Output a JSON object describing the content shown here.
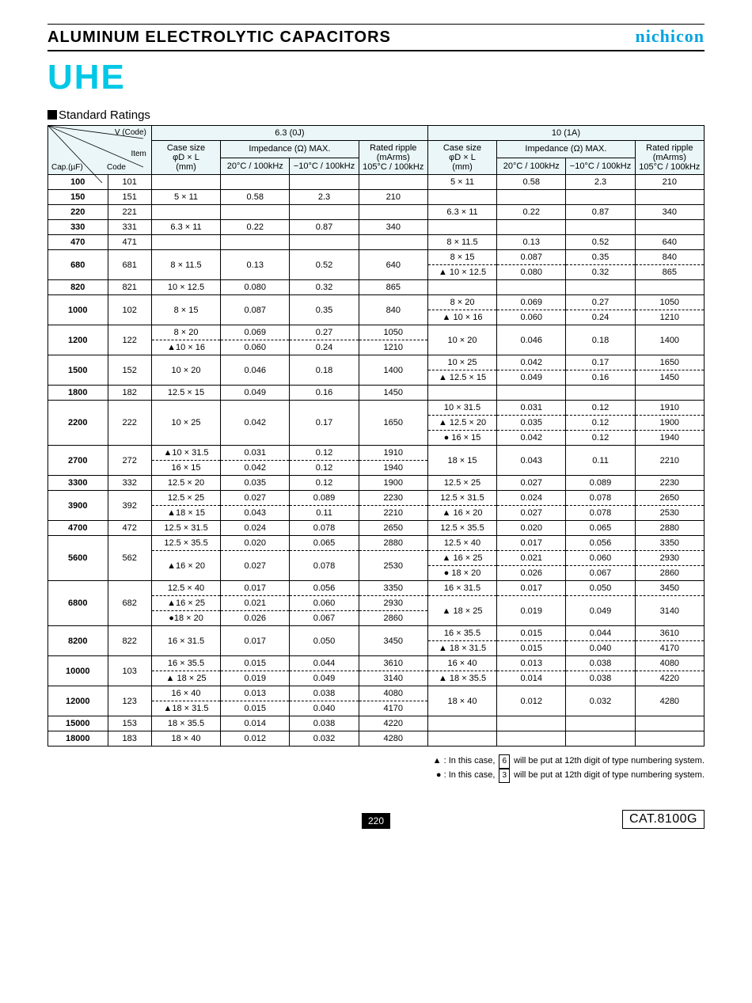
{
  "header": {
    "title": "ALUMINUM  ELECTROLYTIC  CAPACITORS",
    "brand": "nichicon",
    "series": "UHE"
  },
  "section": {
    "title": "Standard Ratings"
  },
  "corner": {
    "vcode": "V (Code)",
    "item": "Item",
    "cap": "Cap.(µF)",
    "code": "Code"
  },
  "volt_headers": [
    "6.3 (0J)",
    "10 (1A)"
  ],
  "sub_headers": {
    "case": "Case size\nφD × L\n(mm)",
    "imp": "Impedance (Ω) MAX.",
    "imp20": "20°C / 100kHz",
    "impm10": "−10°C / 100kHz",
    "ripple": "Rated ripple\n(mArms)\n105°C / 100kHz"
  },
  "rows": [
    {
      "cap": "100",
      "code": "101",
      "a": [
        {
          "case": "",
          "i20": "",
          "im": "",
          "r": ""
        }
      ],
      "b": [
        {
          "case": "5 × 11",
          "i20": "0.58",
          "im": "2.3",
          "r": "210"
        }
      ]
    },
    {
      "cap": "150",
      "code": "151",
      "a": [
        {
          "case": "5 × 11",
          "i20": "0.58",
          "im": "2.3",
          "r": "210"
        }
      ],
      "b": [
        {
          "case": "",
          "i20": "",
          "im": "",
          "r": ""
        }
      ]
    },
    {
      "cap": "220",
      "code": "221",
      "a": [
        {
          "case": "",
          "i20": "",
          "im": "",
          "r": ""
        }
      ],
      "b": [
        {
          "case": "6.3 × 11",
          "i20": "0.22",
          "im": "0.87",
          "r": "340"
        }
      ]
    },
    {
      "cap": "330",
      "code": "331",
      "a": [
        {
          "case": "6.3 × 11",
          "i20": "0.22",
          "im": "0.87",
          "r": "340"
        }
      ],
      "b": [
        {
          "case": "",
          "i20": "",
          "im": "",
          "r": ""
        }
      ]
    },
    {
      "cap": "470",
      "code": "471",
      "a": [
        {
          "case": "",
          "i20": "",
          "im": "",
          "r": ""
        }
      ],
      "b": [
        {
          "case": "8 × 11.5",
          "i20": "0.13",
          "im": "0.52",
          "r": "640"
        }
      ]
    },
    {
      "cap": "680",
      "code": "681",
      "a": [
        {
          "case": "8 × 11.5",
          "i20": "0.13",
          "im": "0.52",
          "r": "640"
        }
      ],
      "b": [
        {
          "case": "8 × 15",
          "i20": "0.087",
          "im": "0.35",
          "r": "840"
        },
        {
          "case": "▲ 10 × 12.5",
          "i20": "0.080",
          "im": "0.32",
          "r": "865"
        }
      ]
    },
    {
      "cap": "820",
      "code": "821",
      "a": [
        {
          "case": "10 × 12.5",
          "i20": "0.080",
          "im": "0.32",
          "r": "865"
        }
      ],
      "b": [
        {
          "case": "",
          "i20": "",
          "im": "",
          "r": ""
        }
      ]
    },
    {
      "cap": "1000",
      "code": "102",
      "a": [
        {
          "case": "8 × 15",
          "i20": "0.087",
          "im": "0.35",
          "r": "840"
        }
      ],
      "b": [
        {
          "case": "8 × 20",
          "i20": "0.069",
          "im": "0.27",
          "r": "1050"
        },
        {
          "case": "▲  10 × 16",
          "i20": "0.060",
          "im": "0.24",
          "r": "1210"
        }
      ]
    },
    {
      "cap": "1200",
      "code": "122",
      "a": [
        {
          "case": "8 × 20",
          "i20": "0.069",
          "im": "0.27",
          "r": "1050"
        },
        {
          "case": "▲10 × 16",
          "i20": "0.060",
          "im": "0.24",
          "r": "1210"
        }
      ],
      "b": [
        {
          "case": "10 × 20",
          "i20": "0.046",
          "im": "0.18",
          "r": "1400"
        }
      ]
    },
    {
      "cap": "1500",
      "code": "152",
      "a": [
        {
          "case": "10 × 20",
          "i20": "0.046",
          "im": "0.18",
          "r": "1400"
        }
      ],
      "b": [
        {
          "case": "10 × 25",
          "i20": "0.042",
          "im": "0.17",
          "r": "1650"
        },
        {
          "case": "▲ 12.5 × 15",
          "i20": "0.049",
          "im": "0.16",
          "r": "1450"
        }
      ]
    },
    {
      "cap": "1800",
      "code": "182",
      "a": [
        {
          "case": "12.5 × 15",
          "i20": "0.049",
          "im": "0.16",
          "r": "1450"
        }
      ],
      "b": [
        {
          "case": "",
          "i20": "",
          "im": "",
          "r": ""
        }
      ]
    },
    {
      "cap": "2200",
      "code": "222",
      "a": [
        {
          "case": "10 × 25",
          "i20": "0.042",
          "im": "0.17",
          "r": "1650"
        }
      ],
      "b": [
        {
          "case": "10 × 31.5",
          "i20": "0.031",
          "im": "0.12",
          "r": "1910"
        },
        {
          "case": "▲ 12.5 × 20",
          "i20": "0.035",
          "im": "0.12",
          "r": "1900"
        },
        {
          "case": "●  16 ×  15",
          "i20": "0.042",
          "im": "0.12",
          "r": "1940"
        }
      ]
    },
    {
      "cap": "2700",
      "code": "272",
      "a": [
        {
          "case": "▲10 × 31.5",
          "i20": "0.031",
          "im": "0.12",
          "r": "1910"
        },
        {
          "case": "16 × 15",
          "i20": "0.042",
          "im": "0.12",
          "r": "1940"
        }
      ],
      "b": [
        {
          "case": "18 ×  15",
          "i20": "0.043",
          "im": "0.11",
          "r": "2210"
        }
      ]
    },
    {
      "cap": "3300",
      "code": "332",
      "a": [
        {
          "case": "12.5 × 20",
          "i20": "0.035",
          "im": "0.12",
          "r": "1900"
        }
      ],
      "b": [
        {
          "case": "12.5 × 25",
          "i20": "0.027",
          "im": "0.089",
          "r": "2230"
        }
      ]
    },
    {
      "cap": "3900",
      "code": "392",
      "a": [
        {
          "case": "12.5 × 25",
          "i20": "0.027",
          "im": "0.089",
          "r": "2230"
        },
        {
          "case": "▲18 × 15",
          "i20": "0.043",
          "im": "0.11",
          "r": "2210"
        }
      ],
      "b": [
        {
          "case": "12.5 × 31.5",
          "i20": "0.024",
          "im": "0.078",
          "r": "2650"
        },
        {
          "case": "▲ 16 × 20",
          "i20": "0.027",
          "im": "0.078",
          "r": "2530"
        }
      ]
    },
    {
      "cap": "4700",
      "code": "472",
      "a": [
        {
          "case": "12.5 × 31.5",
          "i20": "0.024",
          "im": "0.078",
          "r": "2650"
        }
      ],
      "b": [
        {
          "case": "12.5 × 35.5",
          "i20": "0.020",
          "im": "0.065",
          "r": "2880"
        }
      ]
    },
    {
      "cap": "5600",
      "code": "562",
      "a": [
        {
          "case": "12.5 × 35.5",
          "i20": "0.020",
          "im": "0.065",
          "r": "2880"
        },
        {
          "case": "▲16 × 20",
          "i20": "0.027",
          "im": "0.078",
          "r": "2530"
        }
      ],
      "b": [
        {
          "case": "12.5 × 40",
          "i20": "0.017",
          "im": "0.056",
          "r": "3350"
        },
        {
          "case": "▲ 16 × 25",
          "i20": "0.021",
          "im": "0.060",
          "r": "2930"
        },
        {
          "case": "● 18 × 20",
          "i20": "0.026",
          "im": "0.067",
          "r": "2860"
        }
      ]
    },
    {
      "cap": "6800",
      "code": "682",
      "a": [
        {
          "case": "12.5 × 40",
          "i20": "0.017",
          "im": "0.056",
          "r": "3350"
        },
        {
          "case": "▲16 × 25",
          "i20": "0.021",
          "im": "0.060",
          "r": "2930"
        },
        {
          "case": "●18 × 20",
          "i20": "0.026",
          "im": "0.067",
          "r": "2860"
        }
      ],
      "b": [
        {
          "case": "16 × 31.5",
          "i20": "0.017",
          "im": "0.050",
          "r": "3450"
        },
        {
          "case": "▲ 18 × 25",
          "i20": "0.019",
          "im": "0.049",
          "r": "3140"
        }
      ]
    },
    {
      "cap": "8200",
      "code": "822",
      "a": [
        {
          "case": "16 × 31.5",
          "i20": "0.017",
          "im": "0.050",
          "r": "3450"
        }
      ],
      "b": [
        {
          "case": "16 × 35.5",
          "i20": "0.015",
          "im": "0.044",
          "r": "3610"
        },
        {
          "case": "▲ 18 × 31.5",
          "i20": "0.015",
          "im": "0.040",
          "r": "4170"
        }
      ]
    },
    {
      "cap": "10000",
      "code": "103",
      "a": [
        {
          "case": "16 × 35.5",
          "i20": "0.015",
          "im": "0.044",
          "r": "3610"
        },
        {
          "case": "▲ 18 × 25",
          "i20": "0.019",
          "im": "0.049",
          "r": "3140"
        }
      ],
      "b": [
        {
          "case": "16 × 40",
          "i20": "0.013",
          "im": "0.038",
          "r": "4080"
        },
        {
          "case": "▲ 18 × 35.5",
          "i20": "0.014",
          "im": "0.038",
          "r": "4220"
        }
      ]
    },
    {
      "cap": "12000",
      "code": "123",
      "a": [
        {
          "case": "16 × 40",
          "i20": "0.013",
          "im": "0.038",
          "r": "4080"
        },
        {
          "case": "▲18 × 31.5",
          "i20": "0.015",
          "im": "0.040",
          "r": "4170"
        }
      ],
      "b": [
        {
          "case": "18 × 40",
          "i20": "0.012",
          "im": "0.032",
          "r": "4280"
        }
      ]
    },
    {
      "cap": "15000",
      "code": "153",
      "a": [
        {
          "case": "18 × 35.5",
          "i20": "0.014",
          "im": "0.038",
          "r": "4220"
        }
      ],
      "b": [
        {
          "case": "",
          "i20": "",
          "im": "",
          "r": ""
        }
      ]
    },
    {
      "cap": "18000",
      "code": "183",
      "a": [
        {
          "case": "18 × 40",
          "i20": "0.012",
          "im": "0.032",
          "r": "4280"
        }
      ],
      "b": [
        {
          "case": "",
          "i20": "",
          "im": "",
          "r": ""
        }
      ]
    }
  ],
  "footnotes": {
    "tri": "▲ : In this case,",
    "tri_box": "6",
    "tri_tail": "will be put at 12th digit of type numbering system.",
    "cir": "● : In this case,",
    "cir_box": "3",
    "cir_tail": "will be put at 12th digit of type numbering system."
  },
  "footer": {
    "page": "220",
    "cat": "CAT.8100G"
  }
}
